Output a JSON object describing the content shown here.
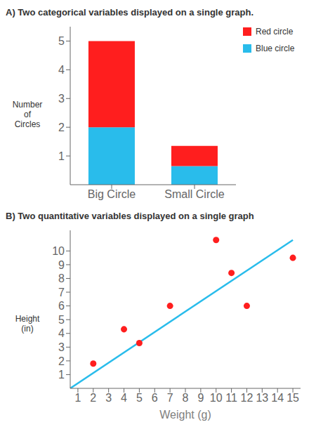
{
  "chart_data": [
    {
      "type": "bar",
      "title": "A) Two categorical variables displayed on a single graph.",
      "categories": [
        "Big Circle",
        "Small Circle"
      ],
      "series": [
        {
          "name": "Blue circle",
          "color": "#29BCEB",
          "values": [
            2.0,
            0.65
          ]
        },
        {
          "name": "Red circle",
          "color": "#FF1E1E",
          "values": [
            3.0,
            0.7
          ]
        }
      ],
      "stacked": true,
      "ylabel": "Number\nof\nCircles",
      "ylim": [
        0,
        5.5
      ],
      "yticks": [
        1,
        2,
        3,
        4,
        5
      ],
      "legend": "upper right",
      "grid": false
    },
    {
      "type": "scatter",
      "title": "B) Two quantitative variables displayed on a single graph",
      "series": [
        {
          "type": "line",
          "color": "#29BCEB",
          "x": [
            0.5,
            15.0
          ],
          "values": [
            0.0,
            10.8
          ]
        },
        {
          "type": "scatter",
          "color": "#FF1E1E",
          "x": [
            2,
            4,
            5,
            7,
            10,
            11,
            12,
            15
          ],
          "values": [
            1.8,
            4.3,
            3.3,
            6.0,
            10.8,
            8.4,
            6.0,
            9.5
          ]
        }
      ],
      "xlabel": "Weight (g)",
      "ylabel": "Height\n(in)",
      "xlim": [
        0.5,
        15.5
      ],
      "ylim": [
        0,
        11.5
      ],
      "xticks": [
        1,
        2,
        3,
        4,
        5,
        6,
        7,
        8,
        9,
        10,
        11,
        12,
        13,
        14,
        15
      ],
      "yticks": [
        1,
        2,
        3,
        4,
        5,
        6,
        7,
        8,
        9,
        10
      ],
      "grid": false
    }
  ]
}
